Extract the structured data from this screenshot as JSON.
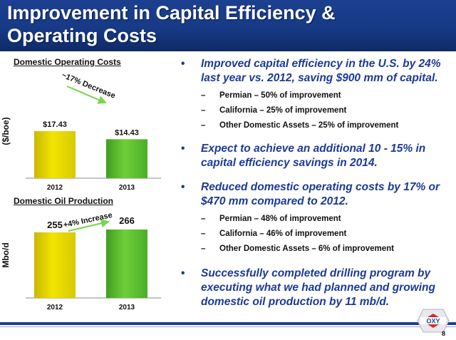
{
  "header": {
    "title_line1": "Improvement in Capital Efficiency &",
    "title_line2": "Operating Costs"
  },
  "chart_data": [
    {
      "type": "bar",
      "title": "Domestic Operating Costs",
      "categories": [
        "2012",
        "2013"
      ],
      "values": [
        17.43,
        14.43
      ],
      "value_labels": [
        "$17.43",
        "$14.43"
      ],
      "ylabel": "($/boe)",
      "ylim": [
        0,
        20
      ],
      "annotation": "~17% Decrease",
      "colors": [
        "#f2e400",
        "#6fcf3a"
      ],
      "grid": false
    },
    {
      "type": "bar",
      "title": "Domestic Oil Production",
      "categories": [
        "2012",
        "2013"
      ],
      "values": [
        255,
        266
      ],
      "value_labels": [
        "255",
        "266"
      ],
      "ylabel": "Mbo/d",
      "ylim": [
        0,
        300
      ],
      "annotation": "+4% Increase",
      "colors": [
        "#f2e400",
        "#6fcf3a"
      ],
      "grid": false
    }
  ],
  "bullets": [
    {
      "text": "Improved capital efficiency in the U.S. by 24% last year vs. 2012, saving $900 mm of capital.",
      "subs": [
        "Permian – 50% of improvement",
        "California – 25% of improvement",
        "Other Domestic Assets – 25% of improvement"
      ]
    },
    {
      "text": "Expect to achieve an additional 10 - 15% in capital efficiency savings in 2014.",
      "subs": []
    },
    {
      "text": "Reduced domestic operating costs by 17% or $470 mm compared to 2012.",
      "subs": [
        "Permian – 48% of improvement",
        "California – 46% of improvement",
        "Other Domestic Assets – 6% of improvement"
      ]
    },
    {
      "text": "Successfully completed drilling program by executing what we had planned and growing domestic oil production by 11 mb/d.",
      "subs": []
    }
  ],
  "bullet_glyph": "•",
  "dash_glyph": "–",
  "logo": {
    "text": "OXY",
    "icon": "oxy-logo-icon"
  },
  "page_number": "8"
}
